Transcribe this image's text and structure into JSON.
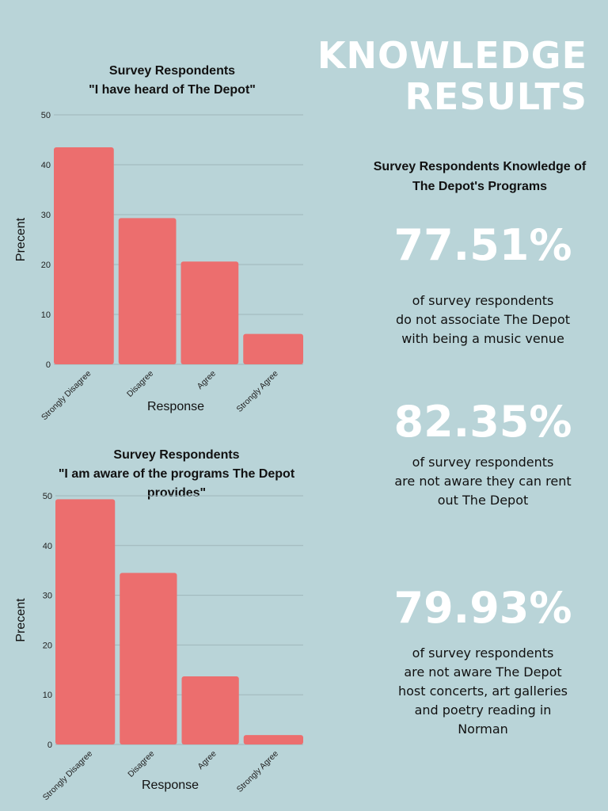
{
  "headline": [
    "KNOWLEDGE",
    "RESULTS"
  ],
  "side_title": [
    "Survey Respondents Knowledge of",
    "The Depot's Programs"
  ],
  "stats": [
    {
      "value": "77.51%",
      "lines": [
        "of survey respondents",
        "do not associate The Depot",
        "with being a music venue"
      ]
    },
    {
      "value": "82.35%",
      "lines": [
        "of survey respondents",
        "are not aware they can rent",
        "out The Depot"
      ]
    },
    {
      "value": "79.93%",
      "lines": [
        "of survey respondents",
        "are not aware The Depot",
        "host concerts, art galleries",
        "and poetry reading in",
        "Norman"
      ]
    }
  ],
  "colors": {
    "background": "#b9d4d8",
    "bar": "#ec6e6e",
    "grid": "#9fb6ba",
    "headline": "#ffffff"
  },
  "chart_data": [
    {
      "type": "bar",
      "title_lines": [
        "Survey Respondents",
        "\"I have heard of The Depot\""
      ],
      "categories": [
        "Strongly Disagree",
        "Disagree",
        "Agree",
        "Strongly Agree"
      ],
      "values": [
        43.5,
        29.3,
        20.6,
        6.1
      ],
      "xlabel": "Response",
      "ylabel": "Precent",
      "ylim": [
        0,
        50
      ],
      "yticks": [
        "0",
        "10",
        "20",
        "30",
        "40",
        "50"
      ],
      "grid": true
    },
    {
      "type": "bar",
      "title_lines": [
        "Survey Respondents",
        "\"I am aware of the programs The Depot",
        "provides\""
      ],
      "categories": [
        "Strongly Disagree",
        "Disagree",
        "Agree",
        "Strongly Agree"
      ],
      "values": [
        49.3,
        34.5,
        13.7,
        1.9
      ],
      "xlabel": "Response",
      "ylabel": "Precent",
      "ylim": [
        0,
        50
      ],
      "yticks": [
        "0",
        "10",
        "20",
        "30",
        "40",
        "50"
      ],
      "grid": true
    }
  ]
}
